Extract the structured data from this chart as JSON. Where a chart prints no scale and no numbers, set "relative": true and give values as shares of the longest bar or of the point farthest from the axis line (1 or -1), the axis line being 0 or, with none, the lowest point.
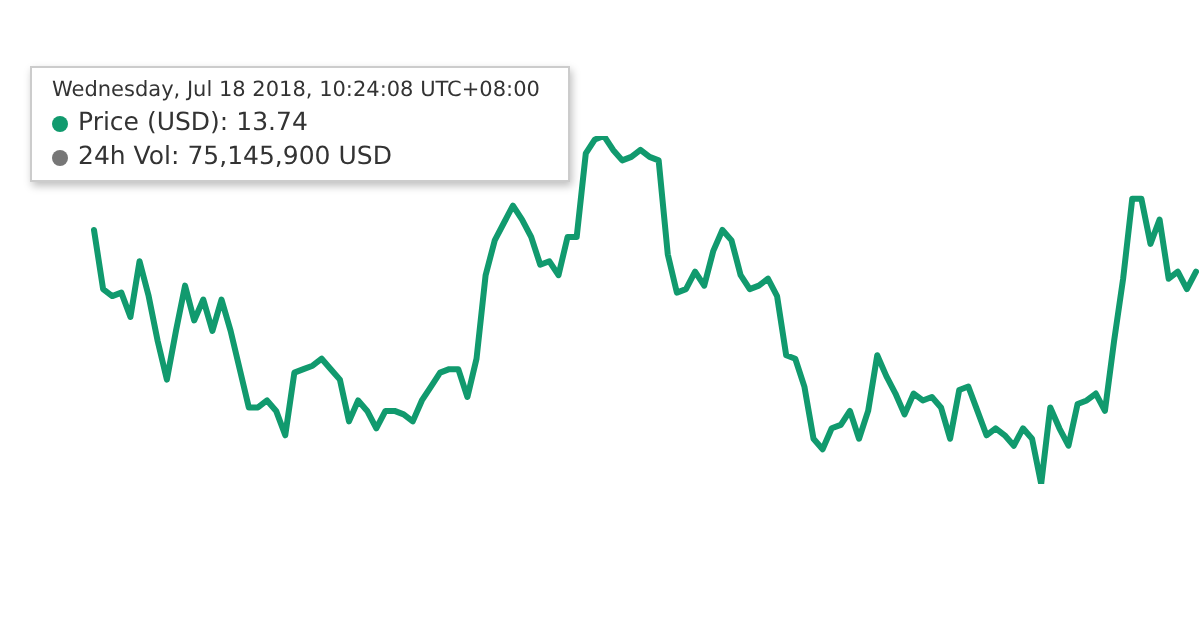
{
  "chart_data": {
    "type": "line",
    "relative": true,
    "line_style": "solid",
    "marker": "none",
    "legend": false,
    "categories": [
      null,
      null,
      null,
      null,
      null,
      null,
      null,
      null,
      null,
      null,
      null,
      null,
      null,
      null,
      null,
      null,
      null,
      null,
      null,
      null,
      null,
      null,
      null,
      null,
      null,
      null,
      null,
      null,
      null,
      null,
      null,
      null,
      null,
      null,
      null,
      null,
      null,
      null,
      null,
      null,
      null,
      null,
      null,
      null,
      null,
      null,
      null,
      null,
      null,
      null,
      null,
      null,
      null,
      null,
      null,
      null,
      null,
      null,
      null,
      null,
      null,
      null,
      null,
      null,
      null,
      null,
      null,
      null,
      null,
      null,
      null,
      null,
      null,
      null,
      null,
      null,
      null,
      null,
      null,
      null,
      null,
      null,
      null,
      null,
      null,
      null,
      null,
      null,
      null,
      null,
      null,
      null,
      null,
      null,
      null,
      null,
      null,
      null,
      null,
      null,
      null,
      null,
      null,
      null,
      null,
      null,
      null,
      null,
      null,
      null,
      null,
      null,
      null,
      null,
      null,
      null,
      null,
      null,
      null,
      null,
      null,
      null
    ],
    "series": [
      {
        "color": "#119a6e",
        "values": [
          0.73,
          0.56,
          0.54,
          0.55,
          0.48,
          0.64,
          0.54,
          0.41,
          0.3,
          0.44,
          0.57,
          0.47,
          0.53,
          0.44,
          0.53,
          0.44,
          0.33,
          0.22,
          0.22,
          0.24,
          0.21,
          0.14,
          0.32,
          0.33,
          0.34,
          0.36,
          0.33,
          0.3,
          0.18,
          0.24,
          0.21,
          0.16,
          0.21,
          0.21,
          0.2,
          0.18,
          0.24,
          0.28,
          0.32,
          0.33,
          0.33,
          0.25,
          0.36,
          0.6,
          0.7,
          0.75,
          0.8,
          0.76,
          0.71,
          0.63,
          0.64,
          0.6,
          0.71,
          0.71,
          0.95,
          0.99,
          1,
          0.96,
          0.93,
          0.94,
          0.96,
          0.94,
          0.93,
          0.66,
          0.55,
          0.56,
          0.61,
          0.57,
          0.67,
          0.73,
          0.7,
          0.6,
          0.56,
          0.57,
          0.59,
          0.54,
          0.37,
          0.36,
          0.28,
          0.13,
          0.1,
          0.16,
          0.17,
          0.21,
          0.13,
          0.21,
          0.37,
          0.31,
          0.26,
          0.2,
          0.26,
          0.24,
          0.25,
          0.22,
          0.13,
          0.27,
          0.28,
          0.21,
          0.14,
          0.16,
          0.14,
          0.11,
          0.16,
          0.13,
          0,
          0.22,
          0.16,
          0.11,
          0.23,
          0.24,
          0.26,
          0.21,
          0.41,
          0.59,
          0.82,
          0.82,
          0.69,
          0.76,
          0.59,
          0.61,
          0.56,
          0.61
        ]
      }
    ],
    "annotations": [
      "Wednesday, Jul 18 2018, 10:24:08 UTC+08:00",
      "Price (USD): 13.74",
      "24h Vol: 75,145,900 USD"
    ]
  }
}
